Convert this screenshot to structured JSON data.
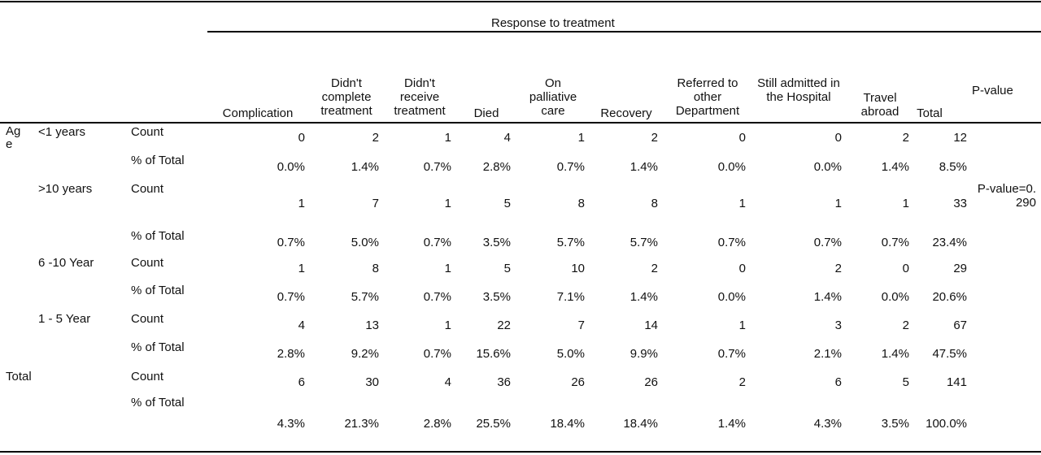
{
  "table": {
    "spanner": "Response to treatment",
    "columns": [
      {
        "key": "complication",
        "label": "Complication"
      },
      {
        "key": "didnt_complete",
        "label": "Didn't complete treatment"
      },
      {
        "key": "didnt_receive",
        "label": "Didn't receive treatment"
      },
      {
        "key": "died",
        "label": "Died"
      },
      {
        "key": "palliative",
        "label": "On palliative care"
      },
      {
        "key": "recovery",
        "label": "Recovery"
      },
      {
        "key": "referred",
        "label": "Referred to other Department"
      },
      {
        "key": "still_admitted",
        "label": "Still admitted in the Hospital"
      },
      {
        "key": "travel_abroad",
        "label": "Travel abroad"
      },
      {
        "key": "total",
        "label": "Total"
      }
    ],
    "pvalue_header": "P-value",
    "pvalue_text": "P-value=0.290",
    "row_variable": "Age",
    "total_label": "Total",
    "stat_labels": {
      "count": "Count",
      "pct": "% of Total"
    },
    "groups": [
      {
        "label": "<1 years",
        "count": [
          "0",
          "2",
          "1",
          "4",
          "1",
          "2",
          "0",
          "0",
          "2",
          "12"
        ],
        "pct": [
          "0.0%",
          "1.4%",
          "0.7%",
          "2.8%",
          "0.7%",
          "1.4%",
          "0.0%",
          "0.0%",
          "1.4%",
          "8.5%"
        ]
      },
      {
        "label": ">10 years",
        "count": [
          "1",
          "7",
          "1",
          "5",
          "8",
          "8",
          "1",
          "1",
          "1",
          "33"
        ],
        "pct": [
          "0.7%",
          "5.0%",
          "0.7%",
          "3.5%",
          "5.7%",
          "5.7%",
          "0.7%",
          "0.7%",
          "0.7%",
          "23.4%"
        ]
      },
      {
        "label": "6 -10 Year",
        "count": [
          "1",
          "8",
          "1",
          "5",
          "10",
          "2",
          "0",
          "2",
          "0",
          "29"
        ],
        "pct": [
          "0.7%",
          "5.7%",
          "0.7%",
          "3.5%",
          "7.1%",
          "1.4%",
          "0.0%",
          "1.4%",
          "0.0%",
          "20.6%"
        ]
      },
      {
        "label": "1 - 5 Year",
        "count": [
          "4",
          "13",
          "1",
          "22",
          "7",
          "14",
          "1",
          "3",
          "2",
          "67"
        ],
        "pct": [
          "2.8%",
          "9.2%",
          "0.7%",
          "15.6%",
          "5.0%",
          "9.9%",
          "0.7%",
          "2.1%",
          "1.4%",
          "47.5%"
        ]
      }
    ],
    "total_row": {
      "count": [
        "6",
        "30",
        "4",
        "36",
        "26",
        "26",
        "2",
        "6",
        "5",
        "141"
      ],
      "pct": [
        "4.3%",
        "21.3%",
        "2.8%",
        "25.5%",
        "18.4%",
        "18.4%",
        "1.4%",
        "4.3%",
        "3.5%",
        "100.0%"
      ]
    }
  }
}
